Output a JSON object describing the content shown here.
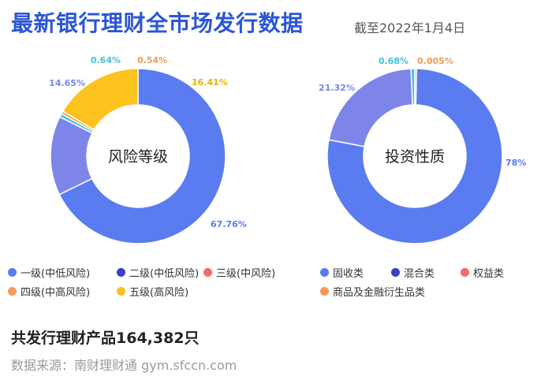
{
  "header": {
    "title": "最新银行理财全市场发行数据",
    "subtitle": "截至2022年1月4日"
  },
  "chart_data": [
    {
      "type": "pie",
      "donut": true,
      "center_label": "风险等级",
      "categories": [
        "一级(中低风险)",
        "二级(中低风险)",
        "三级(中风险)",
        "四级(中高风险)",
        "五级(高风险)"
      ],
      "values": [
        67.76,
        14.65,
        0.64,
        0.54,
        16.41
      ],
      "value_labels": [
        "67.76%",
        "14.65%",
        "0.64%",
        "0.54%",
        "16.41%"
      ],
      "colors": [
        "#5b7bf0",
        "#7d86e8",
        "#3fc4d6",
        "#f59a5a",
        "#fcc31c"
      ],
      "legend_colors": [
        "#5b7bf0",
        "#3a3fc6",
        "#f26b6b",
        "#f59a5a",
        "#fcc31c"
      ],
      "legend_position": "bottom"
    },
    {
      "type": "pie",
      "donut": true,
      "center_label": "投资性质",
      "categories": [
        "固收类",
        "混合类",
        "权益类",
        "商品及金融衍生品类"
      ],
      "values": [
        78,
        21.32,
        0.68,
        0.005
      ],
      "value_labels": [
        "78%",
        "21.32%",
        "0.68%",
        "0.005%"
      ],
      "colors": [
        "#5b7bf0",
        "#7d86e8",
        "#3fc4d6",
        "#f59a5a"
      ],
      "legend_colors": [
        "#5b7bf0",
        "#3a3fc6",
        "#f26b6b",
        "#f59a5a"
      ],
      "legend_position": "bottom"
    }
  ],
  "footer": {
    "total": "共发行理财产品164,382只",
    "source": "数据来源：南财理财通 gym.sfccn.com"
  }
}
